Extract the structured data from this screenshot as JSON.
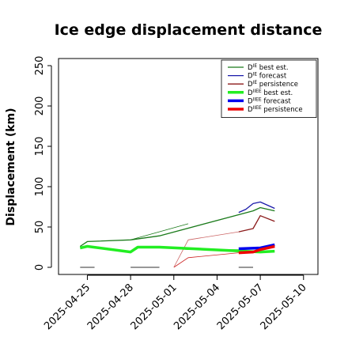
{
  "chart_data": {
    "type": "line",
    "title": "Ice edge displacement distance",
    "xlabel": "",
    "ylabel": "Displacement (km)",
    "xlim": [
      "2025-04-23",
      "2025-05-11"
    ],
    "ylim": [
      0,
      250
    ],
    "yticks": [
      0,
      50,
      100,
      150,
      200,
      250
    ],
    "xticks": [
      {
        "date": "2025-04-25",
        "label": "2025-04-25",
        "color": "#000000"
      },
      {
        "date": "2025-04-28",
        "label": "2025-04-28",
        "color": "#000000"
      },
      {
        "date": "2025-05-01",
        "label": "2025-05-01",
        "color": "#228B22"
      },
      {
        "date": "2025-05-04",
        "label": "2025-05-04",
        "color": "#000000"
      },
      {
        "date": "2025-05-07",
        "label": "2025-05-07",
        "color": "#000000"
      },
      {
        "date": "2025-05-10",
        "label": "2025-05-10",
        "color": "#000000"
      }
    ],
    "grid": false,
    "legend": "top-right",
    "series": [
      {
        "key": "ie_best",
        "name_main": "D",
        "name_sup": "IE",
        "name_rest": " best est.",
        "color": "#1a7a1a",
        "width": 1.3,
        "points": [
          [
            "2025-04-24T12:00",
            26
          ],
          [
            "2025-04-25",
            32
          ],
          [
            "2025-04-28",
            34
          ],
          [
            "2025-04-30",
            39
          ],
          [
            "2025-05-06T12:00",
            70
          ],
          [
            "2025-05-07",
            74
          ],
          [
            "2025-05-08",
            70
          ]
        ]
      },
      {
        "key": "ie_forecast",
        "name_main": "D",
        "name_sup": "IE",
        "name_rest": " forecast",
        "color": "#1a1aaa",
        "width": 1.3,
        "points": [
          [
            "2025-05-05T12:00",
            68
          ],
          [
            "2025-05-06",
            72
          ],
          [
            "2025-05-06T12:00",
            79
          ],
          [
            "2025-05-07",
            81
          ],
          [
            "2025-05-08",
            73
          ]
        ]
      },
      {
        "key": "ie_persist",
        "name_main": "D",
        "name_sup": "IE",
        "name_rest": " persistence",
        "color": "#8b1a1a",
        "width": 1.3,
        "points": [
          [
            "2025-05-05T12:00",
            44
          ],
          [
            "2025-05-06T12:00",
            48
          ],
          [
            "2025-05-07",
            64
          ],
          [
            "2025-05-08",
            57
          ]
        ]
      },
      {
        "key": "iiee_best",
        "name_main": "D",
        "name_sup": "IIEE",
        "name_rest": " best est.",
        "color": "#22ee22",
        "width": 3.5,
        "points": [
          [
            "2025-04-24T12:00",
            24
          ],
          [
            "2025-04-25",
            26
          ],
          [
            "2025-04-28",
            19
          ],
          [
            "2025-04-28T12:00",
            25
          ],
          [
            "2025-04-30",
            25
          ],
          [
            "2025-05-07",
            19
          ],
          [
            "2025-05-08",
            20
          ]
        ]
      },
      {
        "key": "iiee_forecast",
        "name_main": "D",
        "name_sup": "IIEE",
        "name_rest": " forecast",
        "color": "#0000ee",
        "width": 3.5,
        "points": [
          [
            "2025-05-05T12:00",
            23
          ],
          [
            "2025-05-07",
            24
          ],
          [
            "2025-05-08",
            28
          ]
        ]
      },
      {
        "key": "iiee_persist",
        "name_main": "D",
        "name_sup": "IIEE",
        "name_rest": " persistence",
        "color": "#ee0000",
        "width": 3.5,
        "points": [
          [
            "2025-05-05T12:00",
            18
          ],
          [
            "2025-05-06T12:00",
            19
          ],
          [
            "2025-05-07",
            22
          ],
          [
            "2025-05-08",
            26
          ]
        ]
      }
    ],
    "thin_segments": [
      {
        "color": "#1a7a1a",
        "points": [
          [
            "2025-04-28",
            34
          ],
          [
            "2025-05-02",
            54
          ]
        ]
      },
      {
        "color": "#cc2222",
        "points": [
          [
            "2025-05-01",
            0
          ],
          [
            "2025-05-02",
            12
          ],
          [
            "2025-05-05T12:00",
            18
          ]
        ]
      },
      {
        "color": "#cc6666",
        "points": [
          [
            "2025-05-01",
            0
          ],
          [
            "2025-05-02",
            34
          ],
          [
            "2025-05-05T12:00",
            44
          ]
        ]
      },
      {
        "color": "#22aa22",
        "points": [
          [
            "2025-04-30",
            25
          ],
          [
            "2025-05-02",
            22
          ],
          [
            "2025-05-05T12:00",
            22
          ]
        ]
      }
    ],
    "gap_markers": [
      {
        "from": "2025-04-24T12:00",
        "to": "2025-04-25T12:00",
        "y": 0
      },
      {
        "from": "2025-04-28",
        "to": "2025-04-30",
        "y": 0
      },
      {
        "from": "2025-05-05T12:00",
        "to": "2025-05-06T12:00",
        "y": 0
      }
    ],
    "legend_order": [
      "ie_best",
      "ie_forecast",
      "ie_persist",
      "iiee_best",
      "iiee_forecast",
      "iiee_persist"
    ]
  }
}
